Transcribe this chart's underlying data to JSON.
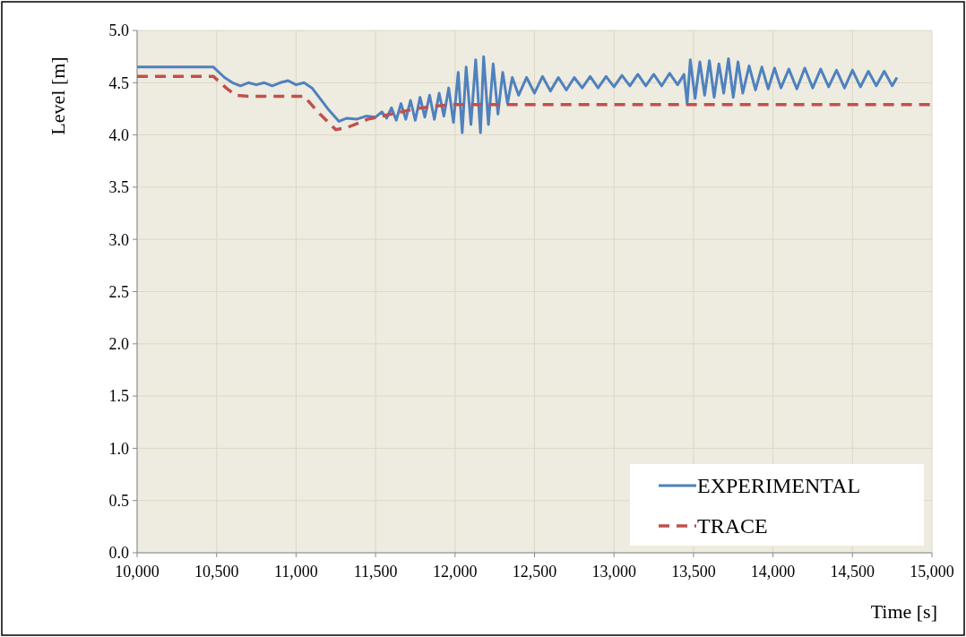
{
  "chart_data": {
    "type": "line",
    "xlabel": "Time [s]",
    "ylabel": "Level [m]",
    "xlim": [
      10000,
      15000
    ],
    "ylim": [
      0,
      5
    ],
    "xticks": [
      {
        "value": 10000,
        "label": "10,000"
      },
      {
        "value": 10500,
        "label": "10,500"
      },
      {
        "value": 11000,
        "label": "11,000"
      },
      {
        "value": 11500,
        "label": "11,500"
      },
      {
        "value": 12000,
        "label": "12,000"
      },
      {
        "value": 12500,
        "label": "12,500"
      },
      {
        "value": 13000,
        "label": "13,000"
      },
      {
        "value": 13500,
        "label": "13,500"
      },
      {
        "value": 14000,
        "label": "14,000"
      },
      {
        "value": 14500,
        "label": "14,500"
      },
      {
        "value": 15000,
        "label": "15,000"
      }
    ],
    "yticks": [
      {
        "value": 0,
        "label": "0.0"
      },
      {
        "value": 0.5,
        "label": "0.5"
      },
      {
        "value": 1,
        "label": "1.0"
      },
      {
        "value": 1.5,
        "label": "1.5"
      },
      {
        "value": 2,
        "label": "2.0"
      },
      {
        "value": 2.5,
        "label": "2.5"
      },
      {
        "value": 3,
        "label": "3.0"
      },
      {
        "value": 3.5,
        "label": "3.5"
      },
      {
        "value": 4,
        "label": "4.0"
      },
      {
        "value": 4.5,
        "label": "4.5"
      },
      {
        "value": 5,
        "label": "5.0"
      }
    ],
    "grid": true,
    "legend": "bottom right",
    "marker": "none",
    "series": [
      {
        "name": "EXPERIMENTAL",
        "color": "#4f81bd",
        "line_style": "solid",
        "x": [
          10000,
          10480,
          10550,
          10600,
          10650,
          10700,
          10750,
          10800,
          10850,
          10900,
          10950,
          11000,
          11050,
          11100,
          11200,
          11270,
          11320,
          11380,
          11440,
          11500,
          11540,
          11570,
          11600,
          11630,
          11660,
          11690,
          11720,
          11750,
          11780,
          11810,
          11840,
          11870,
          11900,
          11930,
          11960,
          11990,
          12020,
          12045,
          12070,
          12100,
          12130,
          12160,
          12180,
          12210,
          12240,
          12270,
          12300,
          12330,
          12360,
          12400,
          12450,
          12500,
          12550,
          12600,
          12650,
          12700,
          12750,
          12800,
          12850,
          12900,
          12950,
          13000,
          13050,
          13100,
          13150,
          13200,
          13250,
          13300,
          13350,
          13400,
          13440,
          13460,
          13480,
          13510,
          13540,
          13570,
          13600,
          13630,
          13660,
          13690,
          13720,
          13750,
          13780,
          13810,
          13850,
          13890,
          13930,
          13970,
          14010,
          14050,
          14100,
          14150,
          14200,
          14250,
          14300,
          14350,
          14400,
          14450,
          14500,
          14550,
          14600,
          14650,
          14700,
          14750,
          14780
        ],
        "values": [
          4.65,
          4.65,
          4.55,
          4.5,
          4.47,
          4.5,
          4.48,
          4.5,
          4.47,
          4.5,
          4.52,
          4.48,
          4.5,
          4.45,
          4.25,
          4.13,
          4.16,
          4.15,
          4.18,
          4.17,
          4.22,
          4.16,
          4.26,
          4.14,
          4.3,
          4.15,
          4.33,
          4.14,
          4.36,
          4.17,
          4.38,
          4.15,
          4.4,
          4.18,
          4.45,
          4.12,
          4.6,
          4.02,
          4.65,
          4.1,
          4.72,
          4.02,
          4.75,
          4.1,
          4.68,
          4.2,
          4.6,
          4.3,
          4.55,
          4.38,
          4.55,
          4.4,
          4.56,
          4.42,
          4.55,
          4.43,
          4.55,
          4.45,
          4.56,
          4.45,
          4.56,
          4.46,
          4.57,
          4.47,
          4.58,
          4.47,
          4.58,
          4.47,
          4.59,
          4.48,
          4.58,
          4.3,
          4.72,
          4.35,
          4.7,
          4.38,
          4.71,
          4.36,
          4.68,
          4.4,
          4.73,
          4.36,
          4.7,
          4.4,
          4.66,
          4.43,
          4.65,
          4.44,
          4.64,
          4.45,
          4.63,
          4.44,
          4.64,
          4.45,
          4.63,
          4.46,
          4.62,
          4.45,
          4.62,
          4.46,
          4.61,
          4.47,
          4.61,
          4.47,
          4.55
        ]
      },
      {
        "name": "TRACE",
        "color": "#c0504d",
        "line_style": "dashed",
        "x": [
          10000,
          10480,
          10560,
          10620,
          10700,
          11050,
          11150,
          11250,
          11320,
          11450,
          11600,
          11750,
          11900,
          12000,
          15000
        ],
        "values": [
          4.56,
          4.56,
          4.45,
          4.38,
          4.37,
          4.37,
          4.2,
          4.05,
          4.07,
          4.15,
          4.2,
          4.25,
          4.28,
          4.29,
          4.29
        ]
      }
    ]
  }
}
